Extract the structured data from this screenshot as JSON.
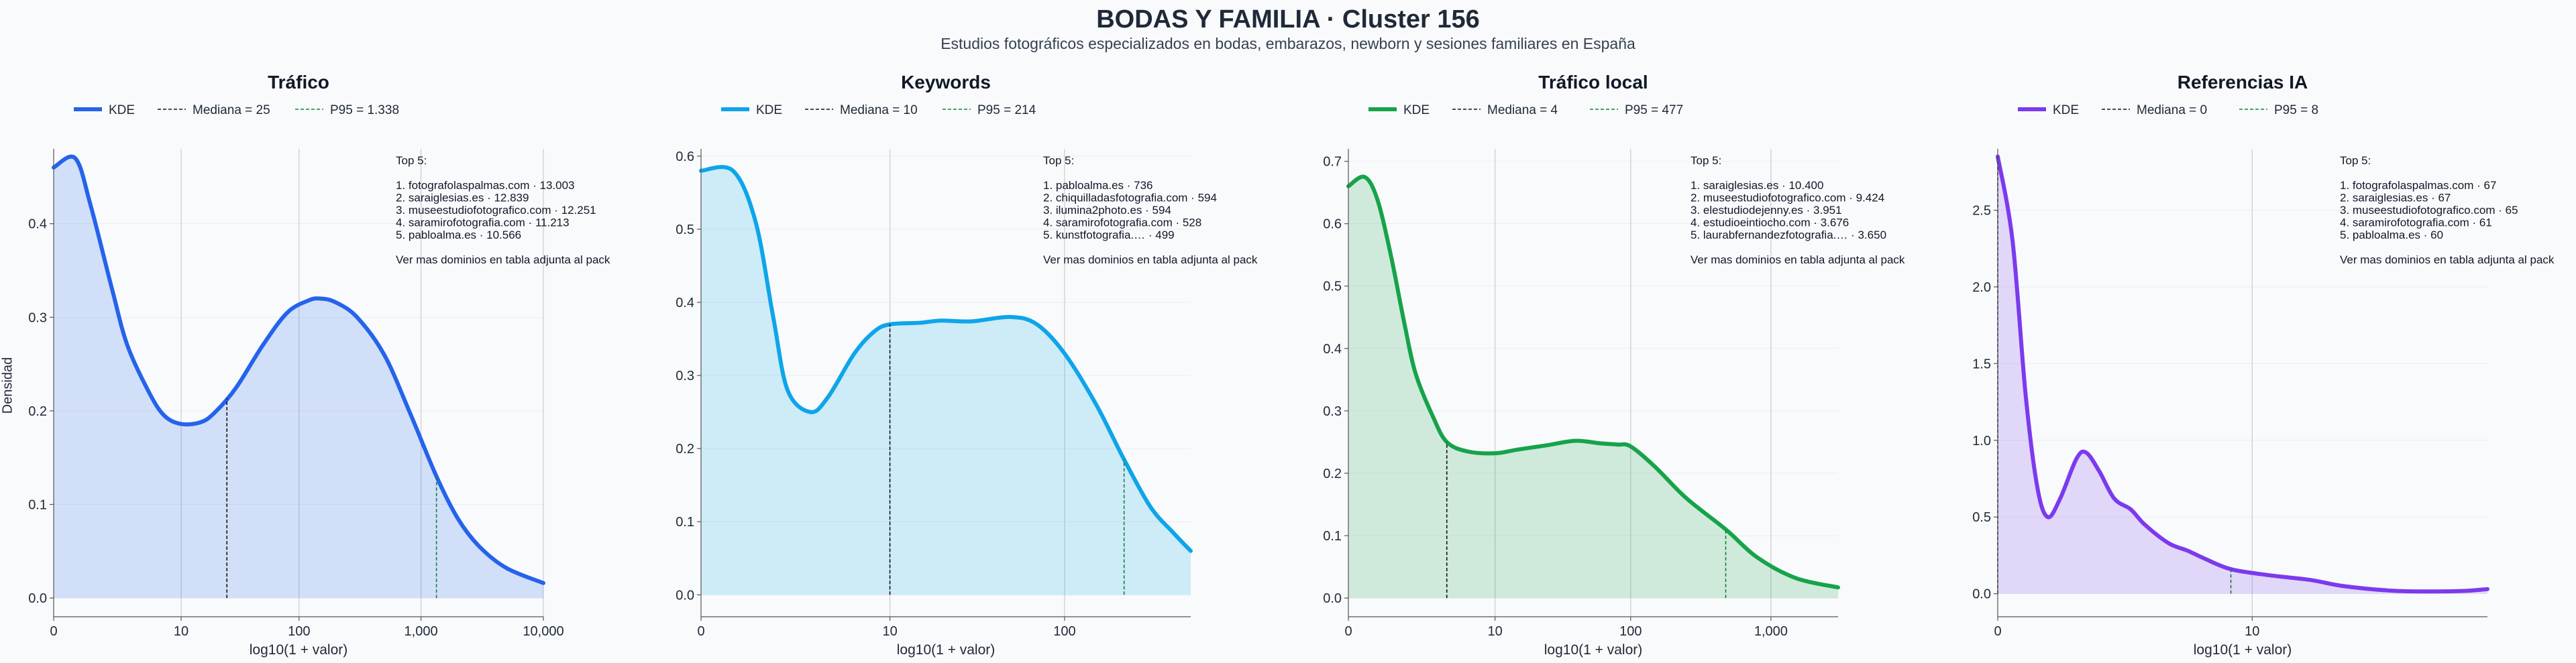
{
  "figure": {
    "title": "BODAS Y FAMILIA · Cluster 156",
    "subtitle": "Estudios fotográficos especializados en bodas, embarazos, newborn y sesiones familiares en España",
    "ylabel": "Densidad"
  },
  "colors": {
    "trafico": "#2563eb",
    "keywords": "#0ea5e9",
    "trafico_local": "#16a34a",
    "referencias_ia": "#7c3aed",
    "median_line": "#111111",
    "p95_line": "#15803d",
    "grid": "#c9ccd1"
  },
  "chart_data": [
    {
      "type": "area",
      "title": "Tráfico",
      "color_key": "trafico",
      "xlabel": "log10(1 + valor)",
      "ylabel": "Densidad",
      "xscale": "log1p",
      "xlim": [
        0,
        10000
      ],
      "ylim": [
        -0.02,
        0.48
      ],
      "xticks": [
        0,
        10,
        100,
        1000,
        10000
      ],
      "xtick_labels": [
        "0",
        "10",
        "100",
        "1,000",
        "10,000"
      ],
      "yticks": [
        0.0,
        0.1,
        0.2,
        0.3,
        0.4
      ],
      "ytick_labels": [
        "0.0",
        "0.1",
        "0.2",
        "0.3",
        "0.4"
      ],
      "legend": {
        "kde": "KDE",
        "median": "Mediana = 25",
        "p95": "P95 = 1.338"
      },
      "median": 25,
      "p95": 1338,
      "kde": [
        [
          0,
          0.46
        ],
        [
          0.5,
          0.47
        ],
        [
          1,
          0.42
        ],
        [
          2,
          0.33
        ],
        [
          3,
          0.27
        ],
        [
          5,
          0.22
        ],
        [
          7,
          0.195
        ],
        [
          10,
          0.186
        ],
        [
          15,
          0.188
        ],
        [
          20,
          0.199
        ],
        [
          30,
          0.225
        ],
        [
          50,
          0.27
        ],
        [
          80,
          0.305
        ],
        [
          120,
          0.318
        ],
        [
          150,
          0.32
        ],
        [
          200,
          0.316
        ],
        [
          300,
          0.3
        ],
        [
          500,
          0.26
        ],
        [
          800,
          0.2
        ],
        [
          1338,
          0.13
        ],
        [
          2000,
          0.085
        ],
        [
          3000,
          0.055
        ],
        [
          5000,
          0.032
        ],
        [
          10000,
          0.016
        ]
      ],
      "annotation": [
        "Top 5:",
        "",
        "1. fotografolaspalmas.com · 13.003",
        "2. saraiglesias.es · 12.839",
        "3. museestudiofotografico.com · 12.251",
        "4. saramirofotografia.com · 11.213",
        "5. pabloalma.es · 10.566",
        "",
        "Ver mas dominios en tabla adjunta al pack"
      ]
    },
    {
      "type": "area",
      "title": "Keywords",
      "color_key": "keywords",
      "xlabel": "log10(1 + valor)",
      "ylabel": "",
      "xscale": "log1p",
      "xlim": [
        0,
        500
      ],
      "ylim": [
        -0.03,
        0.61
      ],
      "xticks": [
        0,
        10,
        100
      ],
      "xtick_labels": [
        "0",
        "10",
        "100"
      ],
      "yticks": [
        0.0,
        0.1,
        0.2,
        0.3,
        0.4,
        0.5,
        0.6
      ],
      "ytick_labels": [
        "0.0",
        "0.1",
        "0.2",
        "0.3",
        "0.4",
        "0.5",
        "0.6"
      ],
      "legend": {
        "kde": "KDE",
        "median": "Mediana = 10",
        "p95": "P95 = 214"
      },
      "median": 10,
      "p95": 214,
      "kde": [
        [
          0,
          0.58
        ],
        [
          0.5,
          0.58
        ],
        [
          1,
          0.51
        ],
        [
          1.5,
          0.38
        ],
        [
          2,
          0.28
        ],
        [
          3,
          0.25
        ],
        [
          4,
          0.27
        ],
        [
          6,
          0.33
        ],
        [
          8,
          0.36
        ],
        [
          10,
          0.37
        ],
        [
          15,
          0.372
        ],
        [
          20,
          0.375
        ],
        [
          30,
          0.374
        ],
        [
          50,
          0.38
        ],
        [
          70,
          0.37
        ],
        [
          100,
          0.33
        ],
        [
          150,
          0.26
        ],
        [
          214,
          0.185
        ],
        [
          300,
          0.12
        ],
        [
          400,
          0.085
        ],
        [
          500,
          0.06
        ]
      ],
      "annotation": [
        "Top 5:",
        "",
        "1. pabloalma.es · 736",
        "2. chiquilladasfotografia.com · 594",
        "3. ilumina2photo.es · 594",
        "4. saramirofotografia.com · 528",
        "5. kunstfotografia.… · 499",
        "",
        "Ver mas dominios en tabla adjunta al pack"
      ]
    },
    {
      "type": "area",
      "title": "Tráfico local",
      "color_key": "trafico_local",
      "xlabel": "log10(1 + valor)",
      "ylabel": "",
      "xscale": "log1p",
      "xlim": [
        0,
        3000
      ],
      "ylim": [
        -0.03,
        0.72
      ],
      "xticks": [
        0,
        10,
        100,
        1000
      ],
      "xtick_labels": [
        "0",
        "10",
        "100",
        "1,000"
      ],
      "yticks": [
        0.0,
        0.1,
        0.2,
        0.3,
        0.4,
        0.5,
        0.6,
        0.7
      ],
      "ytick_labels": [
        "0.0",
        "0.1",
        "0.2",
        "0.3",
        "0.4",
        "0.5",
        "0.6",
        "0.7"
      ],
      "legend": {
        "kde": "KDE",
        "median": "Mediana = 4",
        "p95": "P95 = 477"
      },
      "median": 4,
      "p95": 477,
      "kde": [
        [
          0,
          0.66
        ],
        [
          0.3,
          0.675
        ],
        [
          0.6,
          0.64
        ],
        [
          1,
          0.55
        ],
        [
          1.5,
          0.44
        ],
        [
          2,
          0.36
        ],
        [
          3,
          0.29
        ],
        [
          4,
          0.25
        ],
        [
          6,
          0.235
        ],
        [
          10,
          0.232
        ],
        [
          15,
          0.238
        ],
        [
          25,
          0.245
        ],
        [
          40,
          0.252
        ],
        [
          60,
          0.248
        ],
        [
          80,
          0.246
        ],
        [
          100,
          0.243
        ],
        [
          150,
          0.21
        ],
        [
          250,
          0.16
        ],
        [
          477,
          0.11
        ],
        [
          800,
          0.065
        ],
        [
          1500,
          0.032
        ],
        [
          3000,
          0.017
        ]
      ],
      "annotation": [
        "Top 5:",
        "",
        "1. saraiglesias.es · 10.400",
        "2. museestudiofotografico.com · 9.424",
        "3. elestudiodejenny.es · 3.951",
        "4. estudioeintiocho.com · 3.676",
        "5. laurabfernandezfotografia.… · 3.650",
        "",
        "Ver mas dominios en tabla adjunta al pack"
      ]
    },
    {
      "type": "area",
      "title": "Referencias IA",
      "color_key": "referencias_ia",
      "xlabel": "log10(1 + valor)",
      "ylabel": "",
      "xscale": "log1p",
      "xlim": [
        0,
        100
      ],
      "ylim": [
        -0.15,
        2.9
      ],
      "xticks": [
        0,
        10
      ],
      "xtick_labels": [
        "0",
        "10"
      ],
      "yticks": [
        0.0,
        0.5,
        1.0,
        1.5,
        2.0,
        2.5
      ],
      "ytick_labels": [
        "0.0",
        "0.5",
        "1.0",
        "1.5",
        "2.0",
        "2.5"
      ],
      "legend": {
        "kde": "KDE",
        "median": "Mediana = 0",
        "p95": "P95 = 8"
      },
      "median": 0,
      "p95": 8,
      "kde": [
        [
          0,
          2.85
        ],
        [
          0.15,
          2.3
        ],
        [
          0.3,
          1.3
        ],
        [
          0.45,
          0.7
        ],
        [
          0.6,
          0.5
        ],
        [
          0.8,
          0.62
        ],
        [
          1.1,
          0.88
        ],
        [
          1.3,
          0.92
        ],
        [
          1.6,
          0.8
        ],
        [
          2,
          0.62
        ],
        [
          2.5,
          0.55
        ],
        [
          3,
          0.45
        ],
        [
          4,
          0.33
        ],
        [
          5,
          0.28
        ],
        [
          6,
          0.23
        ],
        [
          8,
          0.16
        ],
        [
          12,
          0.12
        ],
        [
          18,
          0.09
        ],
        [
          25,
          0.05
        ],
        [
          40,
          0.02
        ],
        [
          60,
          0.015
        ],
        [
          80,
          0.018
        ],
        [
          100,
          0.03
        ]
      ],
      "annotation": [
        "Top 5:",
        "",
        "1. fotografolaspalmas.com · 67",
        "2. saraiglesias.es · 67",
        "3. museestudiofotografico.com · 65",
        "4. saramirofotografia.com · 61",
        "5. pabloalma.es · 60",
        "",
        "Ver mas dominios en tabla adjunta al pack"
      ]
    }
  ]
}
